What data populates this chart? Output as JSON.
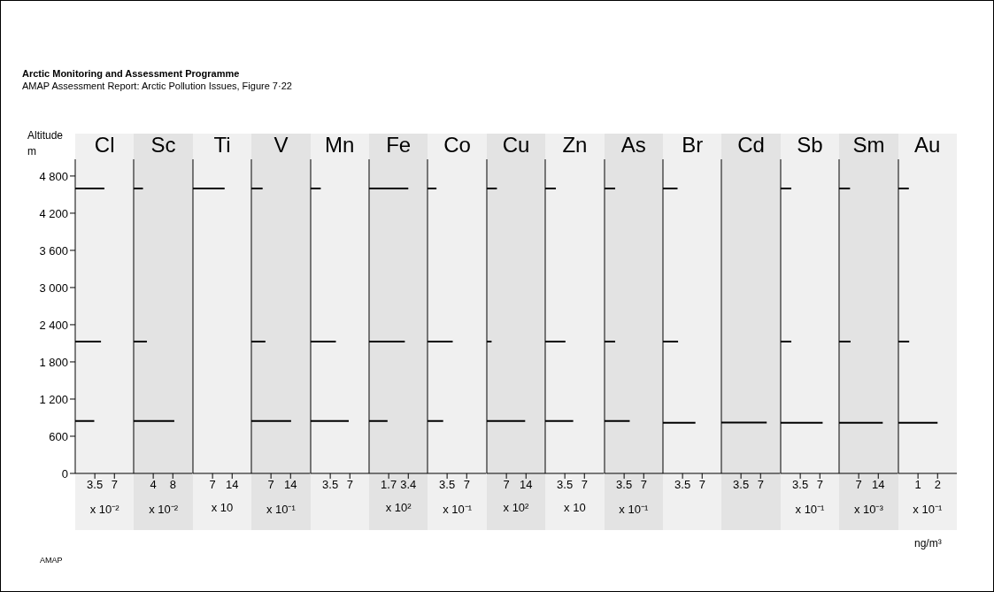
{
  "chart_data": [
    {
      "type": "other",
      "title": "Arctic Monitoring and Assessment Programme",
      "subtitle": "AMAP Assessment Report: Arctic Pollution Issues, Figure 7·22",
      "annotations": [
        "AMAP",
        "ng/m³"
      ]
    },
    {
      "type": "bar",
      "orientation": "horizontal",
      "title": "Cl",
      "ylabel": "Altitude m",
      "x": [
        4600,
        2130,
        850
      ],
      "values": [
        5.2,
        4.6,
        3.4
      ],
      "color": "#000000",
      "xlim": [
        0,
        10.5
      ],
      "xticks": [
        3.5,
        7
      ],
      "xlabel": "x 10⁻²",
      "ylim": [
        0,
        5070
      ],
      "yticks": [
        {
          "value": 0,
          "label": "0"
        },
        {
          "value": 600,
          "label": "600"
        },
        {
          "value": 1200,
          "label": "1 200"
        },
        {
          "value": 1800,
          "label": "1 800"
        },
        {
          "value": 2400,
          "label": "2 400"
        },
        {
          "value": 3000,
          "label": "3 000"
        },
        {
          "value": 3600,
          "label": "3 600"
        },
        {
          "value": 4200,
          "label": "4 200"
        },
        {
          "value": 4800,
          "label": "4 800"
        }
      ]
    },
    {
      "type": "bar",
      "orientation": "horizontal",
      "title": "Sc",
      "x": [
        4600,
        2130,
        850
      ],
      "values": [
        1.9,
        2.7,
        8.3
      ],
      "color": "#000000",
      "xlim": [
        0,
        12
      ],
      "xticks": [
        4,
        8
      ],
      "xlabel": "x 10⁻²",
      "ylim": [
        0,
        5070
      ],
      "tick_labels": "x"
    },
    {
      "type": "bar",
      "orientation": "horizontal",
      "title": "Ti",
      "x": [
        4600
      ],
      "values": [
        11.3
      ],
      "color": "#000000",
      "xlim": [
        0,
        21
      ],
      "xticks": [
        7,
        14
      ],
      "xlabel": "x 10",
      "ylim": [
        0,
        5070
      ],
      "tick_labels": "x"
    },
    {
      "type": "bar",
      "orientation": "horizontal",
      "title": "V",
      "x": [
        4600,
        2130,
        850
      ],
      "values": [
        4.0,
        5.0,
        14.2
      ],
      "color": "#000000",
      "xlim": [
        0,
        21
      ],
      "xticks": [
        7,
        14
      ],
      "xlabel": "x 10⁻¹",
      "ylim": [
        0,
        5070
      ],
      "tick_labels": "x"
    },
    {
      "type": "bar",
      "orientation": "horizontal",
      "title": "Mn",
      "x": [
        4600,
        2130,
        850
      ],
      "values": [
        1.8,
        4.5,
        6.8
      ],
      "color": "#000000",
      "xlim": [
        0,
        10.5
      ],
      "xticks": [
        3.5,
        7
      ],
      "ylim": [
        0,
        5070
      ],
      "tick_labels": "x"
    },
    {
      "type": "bar",
      "orientation": "horizontal",
      "title": "Fe",
      "x": [
        4600,
        2130,
        850
      ],
      "values": [
        3.4,
        3.1,
        1.6
      ],
      "color": "#000000",
      "xlim": [
        0,
        5.1
      ],
      "xticks": [
        1.7,
        3.4
      ],
      "xlabel": "x 10²",
      "ylim": [
        0,
        5070
      ],
      "tick_labels": "x"
    },
    {
      "type": "bar",
      "orientation": "horizontal",
      "title": "Co",
      "x": [
        4600,
        2130,
        850
      ],
      "values": [
        1.6,
        4.5,
        2.8
      ],
      "color": "#000000",
      "xlim": [
        0,
        10.5
      ],
      "xticks": [
        3.5,
        7
      ],
      "xlabel": "x 10⁻¹",
      "ylim": [
        0,
        5070
      ],
      "tick_labels": "x"
    },
    {
      "type": "bar",
      "orientation": "horizontal",
      "title": "Cu",
      "x": [
        4600,
        2130,
        850
      ],
      "values": [
        3.6,
        1.7,
        13.7
      ],
      "color": "#000000",
      "xlim": [
        0,
        21
      ],
      "xticks": [
        7,
        14
      ],
      "xlabel": "x 10²",
      "ylim": [
        0,
        5070
      ],
      "tick_labels": "x"
    },
    {
      "type": "bar",
      "orientation": "horizontal",
      "title": "Zn",
      "x": [
        4600,
        2130,
        850
      ],
      "values": [
        1.9,
        3.6,
        5.0
      ],
      "color": "#000000",
      "xlim": [
        0,
        10.5
      ],
      "xticks": [
        3.5,
        7
      ],
      "xlabel": "x 10",
      "ylim": [
        0,
        5070
      ],
      "tick_labels": "x"
    },
    {
      "type": "bar",
      "orientation": "horizontal",
      "title": "As",
      "x": [
        4600,
        2130,
        850
      ],
      "values": [
        1.9,
        1.9,
        4.5
      ],
      "color": "#000000",
      "xlim": [
        0,
        10.5
      ],
      "xticks": [
        3.5,
        7
      ],
      "xlabel": "x 10⁻¹",
      "ylim": [
        0,
        5070
      ],
      "tick_labels": "x"
    },
    {
      "type": "bar",
      "orientation": "horizontal",
      "title": "Br",
      "x": [
        4600,
        2130,
        820
      ],
      "values": [
        2.6,
        2.7,
        5.8
      ],
      "color": "#000000",
      "xlim": [
        0,
        10.5
      ],
      "xticks": [
        3.5,
        7
      ],
      "ylim": [
        0,
        5070
      ],
      "tick_labels": "x"
    },
    {
      "type": "bar",
      "orientation": "horizontal",
      "title": "Cd",
      "x": [
        820
      ],
      "values": [
        8.1
      ],
      "color": "#000000",
      "xlim": [
        0,
        10.5
      ],
      "xticks": [
        3.5,
        7
      ],
      "ylim": [
        0,
        5070
      ],
      "tick_labels": "x"
    },
    {
      "type": "bar",
      "orientation": "horizontal",
      "title": "Sb",
      "x": [
        4600,
        2130,
        820
      ],
      "values": [
        1.9,
        1.9,
        7.5
      ],
      "color": "#000000",
      "xlim": [
        0,
        10.5
      ],
      "xticks": [
        3.5,
        7
      ],
      "xlabel": "x 10⁻¹",
      "ylim": [
        0,
        5070
      ],
      "tick_labels": "x"
    },
    {
      "type": "bar",
      "orientation": "horizontal",
      "title": "Sm",
      "x": [
        4600,
        2130,
        820
      ],
      "values": [
        3.9,
        4.1,
        15.6
      ],
      "color": "#000000",
      "xlim": [
        0,
        21
      ],
      "xticks": [
        7,
        14
      ],
      "xlabel": "x 10⁻³",
      "ylim": [
        0,
        5070
      ],
      "tick_labels": "x"
    },
    {
      "type": "bar",
      "orientation": "horizontal",
      "title": "Au",
      "x": [
        4600,
        2130,
        820
      ],
      "values": [
        0.53,
        0.55,
        2.0
      ],
      "color": "#000000",
      "xlim": [
        0,
        3
      ],
      "xticks": [
        1,
        2
      ],
      "xlabel": "x 10⁻¹",
      "ylim": [
        0,
        5070
      ],
      "tick_labels": "x"
    }
  ]
}
